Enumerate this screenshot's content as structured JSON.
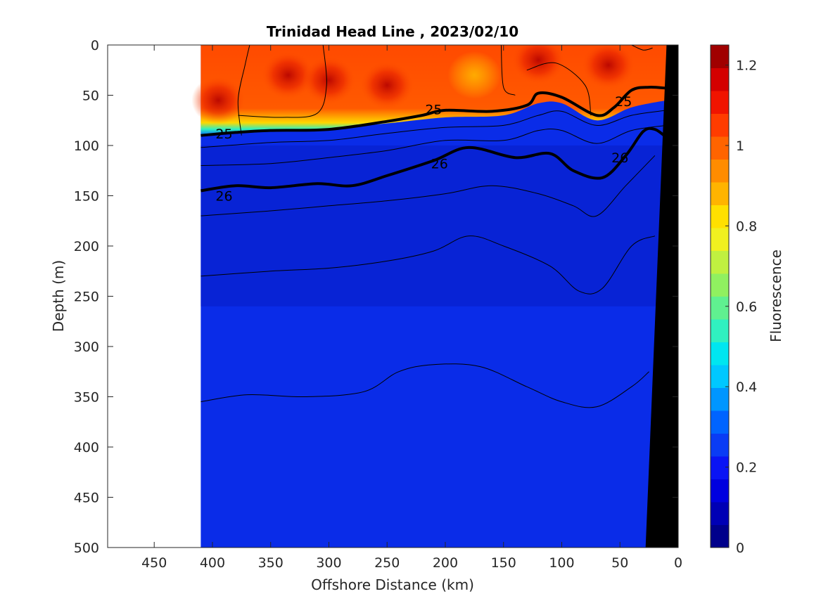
{
  "chart_data": {
    "type": "heatmap",
    "title": "Trinidad Head Line , 2023/02/10",
    "xlabel": "Offshore Distance (km)",
    "ylabel": "Depth (m)",
    "colorbar_label": "Fluorescence",
    "xlim": [
      490,
      0
    ],
    "ylim": [
      500,
      0
    ],
    "x_reversed": true,
    "y_reversed": true,
    "x_ticks": [
      450,
      400,
      350,
      300,
      250,
      200,
      150,
      100,
      50,
      0
    ],
    "y_ticks": [
      0,
      50,
      100,
      150,
      200,
      250,
      300,
      350,
      400,
      450,
      500
    ],
    "colorbar": {
      "range": [
        0,
        1.25
      ],
      "ticks": [
        0,
        0.2,
        0.4,
        0.6,
        0.8,
        1,
        1.2
      ],
      "colors": [
        "#00008b",
        "#0000b5",
        "#0000df",
        "#0a14f5",
        "#0a3cf5",
        "#0064ff",
        "#0096ff",
        "#00c8ff",
        "#00e6f0",
        "#30f0c0",
        "#60f090",
        "#90f060",
        "#c0f040",
        "#f0f020",
        "#ffe000",
        "#ffb400",
        "#ff8c00",
        "#ff6400",
        "#ff3c00",
        "#f01400",
        "#d40000",
        "#a00000"
      ]
    },
    "data_extent": {
      "x": [
        410,
        0
      ],
      "depth": [
        0,
        500
      ]
    },
    "bottom_profile": [
      {
        "x": 10,
        "depth": 0
      },
      {
        "x": 28,
        "depth": 500
      }
    ],
    "surface_layer": {
      "base_depth": [
        {
          "x": 410,
          "depth": 90
        },
        {
          "x": 350,
          "depth": 85
        },
        {
          "x": 300,
          "depth": 83
        },
        {
          "x": 250,
          "depth": 78
        },
        {
          "x": 200,
          "depth": 72
        },
        {
          "x": 150,
          "depth": 70
        },
        {
          "x": 120,
          "depth": 58
        },
        {
          "x": 100,
          "depth": 58
        },
        {
          "x": 70,
          "depth": 75
        },
        {
          "x": 40,
          "depth": 62
        },
        {
          "x": 10,
          "depth": 55
        }
      ],
      "value": 1.0
    },
    "high_patches": [
      {
        "x": 335,
        "depth": 30,
        "value": 1.1
      },
      {
        "x": 300,
        "depth": 35,
        "value": 1.15
      },
      {
        "x": 250,
        "depth": 40,
        "value": 1.2
      },
      {
        "x": 395,
        "depth": 55,
        "value": 1.1
      },
      {
        "x": 120,
        "depth": 15,
        "value": 1.15
      },
      {
        "x": 60,
        "depth": 20,
        "value": 1.2
      },
      {
        "x": 175,
        "depth": 30,
        "value": 0.9
      }
    ],
    "density_contours": [
      {
        "level": "25",
        "labeled": true,
        "points": [
          {
            "x": 410,
            "depth": 90
          },
          {
            "x": 380,
            "depth": 87
          },
          {
            "x": 350,
            "depth": 85
          },
          {
            "x": 300,
            "depth": 84
          },
          {
            "x": 250,
            "depth": 76
          },
          {
            "x": 220,
            "depth": 70
          },
          {
            "x": 200,
            "depth": 65
          },
          {
            "x": 160,
            "depth": 66
          },
          {
            "x": 130,
            "depth": 60
          },
          {
            "x": 120,
            "depth": 48
          },
          {
            "x": 100,
            "depth": 52
          },
          {
            "x": 70,
            "depth": 70
          },
          {
            "x": 55,
            "depth": 62
          },
          {
            "x": 40,
            "depth": 45
          },
          {
            "x": 25,
            "depth": 42
          },
          {
            "x": 10,
            "depth": 43
          }
        ]
      },
      {
        "level": "26",
        "labeled": true,
        "points": [
          {
            "x": 410,
            "depth": 145
          },
          {
            "x": 380,
            "depth": 140
          },
          {
            "x": 350,
            "depth": 142
          },
          {
            "x": 310,
            "depth": 138
          },
          {
            "x": 280,
            "depth": 140
          },
          {
            "x": 250,
            "depth": 130
          },
          {
            "x": 210,
            "depth": 115
          },
          {
            "x": 180,
            "depth": 102
          },
          {
            "x": 140,
            "depth": 112
          },
          {
            "x": 110,
            "depth": 108
          },
          {
            "x": 90,
            "depth": 125
          },
          {
            "x": 65,
            "depth": 132
          },
          {
            "x": 45,
            "depth": 110
          },
          {
            "x": 30,
            "depth": 86
          },
          {
            "x": 20,
            "depth": 84
          },
          {
            "x": 10,
            "depth": 92
          }
        ]
      }
    ],
    "thin_contours": [
      [
        {
          "x": 410,
          "depth": 102
        },
        {
          "x": 350,
          "depth": 97
        },
        {
          "x": 300,
          "depth": 95
        },
        {
          "x": 250,
          "depth": 88
        },
        {
          "x": 200,
          "depth": 82
        },
        {
          "x": 150,
          "depth": 80
        },
        {
          "x": 120,
          "depth": 70
        },
        {
          "x": 100,
          "depth": 66
        },
        {
          "x": 70,
          "depth": 80
        },
        {
          "x": 40,
          "depth": 70
        },
        {
          "x": 10,
          "depth": 65
        }
      ],
      [
        {
          "x": 410,
          "depth": 120
        },
        {
          "x": 350,
          "depth": 118
        },
        {
          "x": 300,
          "depth": 112
        },
        {
          "x": 250,
          "depth": 105
        },
        {
          "x": 200,
          "depth": 95
        },
        {
          "x": 150,
          "depth": 95
        },
        {
          "x": 120,
          "depth": 85
        },
        {
          "x": 100,
          "depth": 85
        },
        {
          "x": 70,
          "depth": 98
        },
        {
          "x": 40,
          "depth": 85
        },
        {
          "x": 10,
          "depth": 80
        }
      ],
      [
        {
          "x": 410,
          "depth": 170
        },
        {
          "x": 350,
          "depth": 165
        },
        {
          "x": 300,
          "depth": 160
        },
        {
          "x": 250,
          "depth": 155
        },
        {
          "x": 200,
          "depth": 148
        },
        {
          "x": 160,
          "depth": 140
        },
        {
          "x": 120,
          "depth": 148
        },
        {
          "x": 90,
          "depth": 160
        },
        {
          "x": 70,
          "depth": 170
        },
        {
          "x": 45,
          "depth": 140
        },
        {
          "x": 20,
          "depth": 110
        }
      ],
      [
        {
          "x": 410,
          "depth": 230
        },
        {
          "x": 350,
          "depth": 225
        },
        {
          "x": 300,
          "depth": 222
        },
        {
          "x": 250,
          "depth": 215
        },
        {
          "x": 210,
          "depth": 205
        },
        {
          "x": 180,
          "depth": 190
        },
        {
          "x": 150,
          "depth": 200
        },
        {
          "x": 110,
          "depth": 220
        },
        {
          "x": 85,
          "depth": 245
        },
        {
          "x": 65,
          "depth": 242
        },
        {
          "x": 40,
          "depth": 200
        },
        {
          "x": 20,
          "depth": 190
        }
      ],
      [
        {
          "x": 410,
          "depth": 355
        },
        {
          "x": 370,
          "depth": 348
        },
        {
          "x": 320,
          "depth": 350
        },
        {
          "x": 270,
          "depth": 345
        },
        {
          "x": 240,
          "depth": 325
        },
        {
          "x": 210,
          "depth": 318
        },
        {
          "x": 170,
          "depth": 320
        },
        {
          "x": 130,
          "depth": 340
        },
        {
          "x": 100,
          "depth": 355
        },
        {
          "x": 70,
          "depth": 360
        },
        {
          "x": 40,
          "depth": 340
        },
        {
          "x": 25,
          "depth": 325
        }
      ],
      [
        {
          "x": 375,
          "depth": 90
        },
        {
          "x": 378,
          "depth": 55
        },
        {
          "x": 372,
          "depth": 20
        },
        {
          "x": 368,
          "depth": 0
        }
      ],
      [
        {
          "x": 378,
          "depth": 70
        },
        {
          "x": 340,
          "depth": 72
        },
        {
          "x": 310,
          "depth": 68
        },
        {
          "x": 302,
          "depth": 40
        },
        {
          "x": 305,
          "depth": 0
        }
      ],
      [
        {
          "x": 140,
          "depth": 50
        },
        {
          "x": 150,
          "depth": 42
        },
        {
          "x": 152,
          "depth": 0
        }
      ],
      [
        {
          "x": 130,
          "depth": 25
        },
        {
          "x": 105,
          "depth": 18
        },
        {
          "x": 80,
          "depth": 40
        },
        {
          "x": 75,
          "depth": 70
        }
      ],
      [
        {
          "x": 40,
          "depth": 0
        },
        {
          "x": 30,
          "depth": 5
        },
        {
          "x": 22,
          "depth": 3
        }
      ]
    ]
  }
}
